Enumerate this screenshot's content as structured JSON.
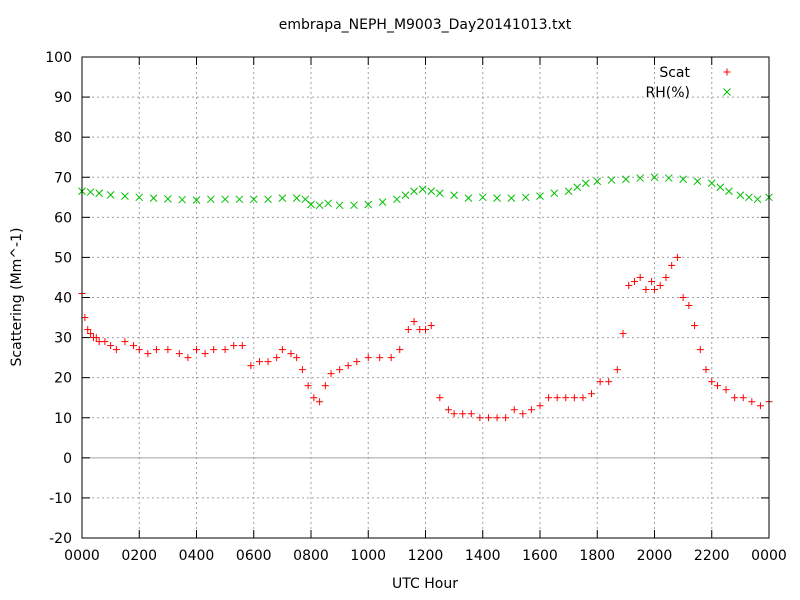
{
  "chart_data": {
    "type": "scatter",
    "title": "embrapa_NEPH_M9003_Day20141013.txt",
    "xlabel": "UTC Hour",
    "ylabel": "Scattering (Mm^-1)",
    "xlim": [
      0,
      24
    ],
    "ylim": [
      -20,
      100
    ],
    "x_ticks": [
      0,
      2,
      4,
      6,
      8,
      10,
      12,
      14,
      16,
      18,
      20,
      22,
      24
    ],
    "x_tick_labels": [
      "0000",
      "0200",
      "0400",
      "0600",
      "0800",
      "1000",
      "1200",
      "1400",
      "1600",
      "1800",
      "2000",
      "2200",
      "0000"
    ],
    "y_ticks": [
      -20,
      -10,
      0,
      10,
      20,
      30,
      40,
      50,
      60,
      70,
      80,
      90,
      100
    ],
    "grid": true,
    "legend_position": "top-right",
    "series": [
      {
        "name": "Scat",
        "marker": "+",
        "color": "#ff0000",
        "x": [
          0.0,
          0.1,
          0.2,
          0.3,
          0.4,
          0.5,
          0.6,
          0.8,
          1.0,
          1.2,
          1.5,
          1.8,
          2.0,
          2.3,
          2.6,
          3.0,
          3.4,
          3.7,
          4.0,
          4.3,
          4.6,
          5.0,
          5.3,
          5.6,
          5.9,
          6.2,
          6.5,
          6.8,
          7.0,
          7.3,
          7.5,
          7.7,
          7.9,
          8.1,
          8.3,
          8.5,
          8.7,
          9.0,
          9.3,
          9.6,
          10.0,
          10.4,
          10.8,
          11.1,
          11.4,
          11.6,
          11.8,
          12.0,
          12.2,
          12.5,
          12.8,
          13.0,
          13.3,
          13.6,
          13.9,
          14.2,
          14.5,
          14.8,
          15.1,
          15.4,
          15.7,
          16.0,
          16.3,
          16.6,
          16.9,
          17.2,
          17.5,
          17.8,
          18.1,
          18.4,
          18.7,
          18.9,
          19.1,
          19.3,
          19.5,
          19.7,
          19.9,
          20.0,
          20.2,
          20.4,
          20.6,
          20.8,
          21.0,
          21.2,
          21.4,
          21.6,
          21.8,
          22.0,
          22.2,
          22.5,
          22.8,
          23.1,
          23.4,
          23.7,
          24.0
        ],
        "y": [
          41,
          35,
          32,
          31,
          30,
          30,
          29,
          29,
          28,
          27,
          29,
          28,
          27,
          26,
          27,
          27,
          26,
          25,
          27,
          26,
          27,
          27,
          28,
          28,
          23,
          24,
          24,
          25,
          27,
          26,
          25,
          22,
          18,
          15,
          14,
          18,
          21,
          22,
          23,
          24,
          25,
          25,
          25,
          27,
          32,
          34,
          32,
          32,
          33,
          15,
          12,
          11,
          11,
          11,
          10,
          10,
          10,
          10,
          12,
          11,
          12,
          13,
          15,
          15,
          15,
          15,
          15,
          16,
          19,
          19,
          22,
          31,
          43,
          44,
          45,
          42,
          44,
          42,
          43,
          45,
          48,
          50,
          40,
          38,
          33,
          27,
          22,
          19,
          18,
          17,
          15,
          15,
          14,
          13,
          14
        ]
      },
      {
        "name": "RH(%)",
        "marker": "x",
        "color": "#00c000",
        "x": [
          0.0,
          0.3,
          0.6,
          1.0,
          1.5,
          2.0,
          2.5,
          3.0,
          3.5,
          4.0,
          4.5,
          5.0,
          5.5,
          6.0,
          6.5,
          7.0,
          7.5,
          7.8,
          8.0,
          8.3,
          8.6,
          9.0,
          9.5,
          10.0,
          10.5,
          11.0,
          11.3,
          11.6,
          11.9,
          12.2,
          12.5,
          13.0,
          13.5,
          14.0,
          14.5,
          15.0,
          15.5,
          16.0,
          16.5,
          17.0,
          17.3,
          17.6,
          18.0,
          18.5,
          19.0,
          19.5,
          20.0,
          20.5,
          21.0,
          21.5,
          22.0,
          22.3,
          22.6,
          23.0,
          23.3,
          23.6,
          24.0
        ],
        "y": [
          66.5,
          66.3,
          66.0,
          65.6,
          65.3,
          65.0,
          64.8,
          64.6,
          64.4,
          64.3,
          64.5,
          64.5,
          64.5,
          64.5,
          64.5,
          64.8,
          64.8,
          64.5,
          63.2,
          63.0,
          63.5,
          63.0,
          63.0,
          63.2,
          63.8,
          64.5,
          65.5,
          66.5,
          67.0,
          66.5,
          66.0,
          65.5,
          64.8,
          65.0,
          64.8,
          64.8,
          65.0,
          65.3,
          66.0,
          66.5,
          67.5,
          68.5,
          69.0,
          69.3,
          69.5,
          69.8,
          70.0,
          69.8,
          69.5,
          69.0,
          68.5,
          67.5,
          66.5,
          65.5,
          65.0,
          64.5,
          65.0
        ]
      }
    ]
  }
}
